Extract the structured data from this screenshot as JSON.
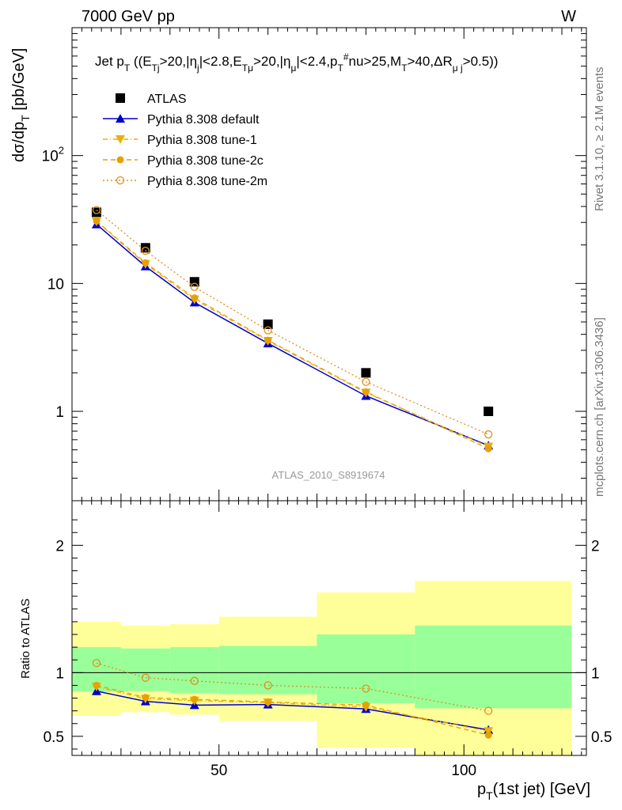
{
  "header": {
    "left": "7000 GeV pp",
    "right": "W"
  },
  "side_labels": {
    "rivet": "Rivet 3.1.10, ≥ 2.1M events",
    "mcplots": "mcplots.cern.ch [arXiv:1306.3436]"
  },
  "chart_data": [
    {
      "type": "scatter",
      "panel": "main",
      "title": "Jet pT ((ETj>20,|ηj|<2.8,ETμ>20,|ημ|<2.4,pT#nu>25,MT>40,ΔRμj>0.5))",
      "ylabel": "dσ/dpT [pb/GeV]",
      "yscale": "log",
      "ylim": [
        0.2,
        1000
      ],
      "xlim": [
        20,
        125
      ],
      "y_tick_labels": [
        "1",
        "10",
        "10^2"
      ],
      "watermark": "ATLAS_2010_S8919674",
      "legend_position": "top-left",
      "x": [
        25,
        35,
        45,
        60,
        80,
        105
      ],
      "series": [
        {
          "name": "ATLAS",
          "values": [
            36,
            19,
            10.3,
            4.8,
            2.0,
            1.0
          ],
          "color": "#000000",
          "marker": "square-filled"
        },
        {
          "name": "Pythia 8.308 default",
          "values": [
            29,
            13.6,
            7.1,
            3.4,
            1.32,
            0.54
          ],
          "color": "#0000cc",
          "marker": "triangle-up-filled",
          "line": "solid"
        },
        {
          "name": "Pythia 8.308 tune-1",
          "values": [
            30.5,
            14.2,
            7.5,
            3.55,
            1.4,
            0.53
          ],
          "color": "#e8b000",
          "marker": "triangle-down-filled",
          "line": "dashdot"
        },
        {
          "name": "Pythia 8.308 tune-2c",
          "values": [
            30.8,
            14.5,
            7.7,
            3.6,
            1.42,
            0.51
          ],
          "color": "#e8a000",
          "marker": "circle-filled",
          "line": "dashed"
        },
        {
          "name": "Pythia 8.308 tune-2m",
          "values": [
            37.5,
            18,
            9.4,
            4.3,
            1.7,
            0.66
          ],
          "color": "#e09020",
          "marker": "circle-open",
          "line": "dotted"
        }
      ]
    },
    {
      "type": "scatter",
      "panel": "ratio",
      "ylabel": "Ratio to ATLAS",
      "xlabel": "pT(1st jet) [GeV]",
      "ylim": [
        0.35,
        2.35
      ],
      "xlim": [
        20,
        125
      ],
      "y_tick_labels": [
        "0.5",
        "1",
        "2"
      ],
      "x_tick_labels": [
        "50",
        "100"
      ],
      "x": [
        25,
        35,
        45,
        60,
        80,
        105
      ],
      "series": [
        {
          "name": "Pythia 8.308 default",
          "values": [
            0.855,
            0.775,
            0.745,
            0.75,
            0.715,
            0.55
          ],
          "color": "#0000cc",
          "marker": "triangle-up-filled",
          "line": "solid"
        },
        {
          "name": "Pythia 8.308 tune-1",
          "values": [
            0.89,
            0.795,
            0.78,
            0.765,
            0.73,
            0.54
          ],
          "color": "#e8b000",
          "marker": "triangle-down-filled",
          "line": "dashdot"
        },
        {
          "name": "Pythia 8.308 tune-2c",
          "values": [
            0.9,
            0.805,
            0.79,
            0.77,
            0.745,
            0.51
          ],
          "color": "#e8a000",
          "marker": "circle-filled",
          "line": "dashed"
        },
        {
          "name": "Pythia 8.308 tune-2m",
          "values": [
            1.075,
            0.96,
            0.935,
            0.9,
            0.875,
            0.7
          ],
          "color": "#e09020",
          "marker": "circle-open",
          "line": "dotted"
        }
      ],
      "bands": [
        {
          "x0": 20,
          "x1": 30,
          "green": [
            0.85,
            1.2
          ],
          "yellow": [
            0.66,
            1.4
          ]
        },
        {
          "x0": 30,
          "x1": 40,
          "green": [
            0.855,
            1.19
          ],
          "yellow": [
            0.69,
            1.37
          ]
        },
        {
          "x0": 40,
          "x1": 50,
          "green": [
            0.84,
            1.2
          ],
          "yellow": [
            0.67,
            1.38
          ]
        },
        {
          "x0": 50,
          "x1": 70,
          "green": [
            0.83,
            1.21
          ],
          "yellow": [
            0.62,
            1.44
          ]
        },
        {
          "x0": 70,
          "x1": 90,
          "green": [
            0.76,
            1.3
          ],
          "yellow": [
            0.41,
            1.63
          ]
        },
        {
          "x0": 90,
          "x1": 122,
          "green": [
            0.72,
            1.37
          ],
          "yellow": [
            0.35,
            1.72
          ]
        }
      ]
    }
  ]
}
